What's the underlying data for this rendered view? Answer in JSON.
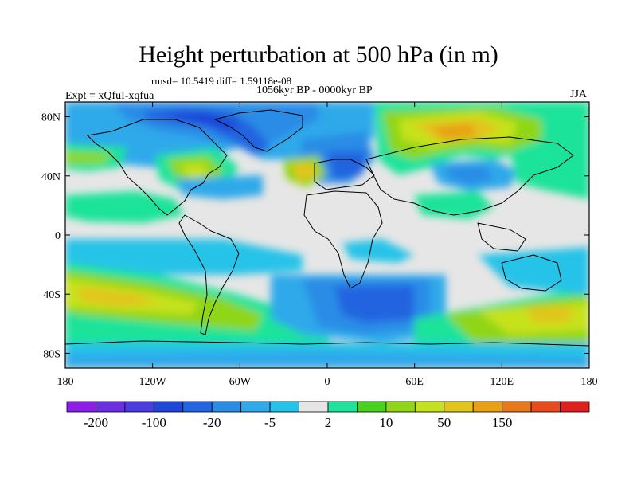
{
  "title": "Height perturbation at 500 hPa (in m)",
  "stats_line": "rmsd= 10.5419 diff= 1.59118e-08",
  "period": "1056kyr BP - 0000kyr BP",
  "experiment": "Expt = xQfuI-xqfua",
  "season": "JJA",
  "map": {
    "projection": "cylindrical equidistant",
    "coastlines": true,
    "lon_range": [
      -180,
      180
    ],
    "lat_range": [
      -90,
      90
    ],
    "x_ticks": [
      {
        "lon": -180,
        "label": "180"
      },
      {
        "lon": -120,
        "label": "120W"
      },
      {
        "lon": -60,
        "label": "60W"
      },
      {
        "lon": 0,
        "label": "0"
      },
      {
        "lon": 60,
        "label": "60E"
      },
      {
        "lon": 120,
        "label": "120E"
      },
      {
        "lon": 180,
        "label": "180"
      }
    ],
    "y_ticks": [
      {
        "lat": 80,
        "label": "80N"
      },
      {
        "lat": 40,
        "label": "40N"
      },
      {
        "lat": 0,
        "label": "0"
      },
      {
        "lat": -40,
        "label": "40S"
      },
      {
        "lat": -80,
        "label": "80S"
      }
    ]
  },
  "colorbar": {
    "colors": [
      "#8c1ee8",
      "#6a2fe0",
      "#4a3ce0",
      "#1e46d8",
      "#2364e0",
      "#2b8ce6",
      "#2ea9ea",
      "#25c3e8",
      "#e6e6e6",
      "#1ee39a",
      "#48d21e",
      "#8fd618",
      "#c6e21c",
      "#e2c51a",
      "#e8a014",
      "#e8781a",
      "#e84a1e",
      "#e01e1e"
    ],
    "labels": [
      {
        "after_box": 1,
        "text": "-200"
      },
      {
        "after_box": 3,
        "text": "-100"
      },
      {
        "after_box": 5,
        "text": "-20"
      },
      {
        "after_box": 7,
        "text": "-5"
      },
      {
        "after_box": 9,
        "text": "2"
      },
      {
        "after_box": 11,
        "text": "10"
      },
      {
        "after_box": 13,
        "text": "50"
      },
      {
        "after_box": 15,
        "text": "150"
      }
    ]
  }
}
